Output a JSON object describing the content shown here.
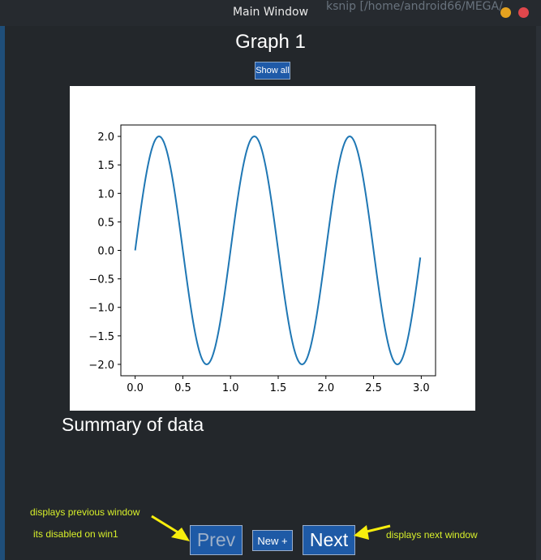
{
  "window": {
    "title": "Main Window",
    "background_title": "ksnip [/home/android66/MEGA/"
  },
  "main": {
    "graph_title": "Graph 1",
    "show_all_label": "Show all",
    "summary_label": "Summary of data",
    "prev_label": "Prev",
    "new_label": "New +",
    "next_label": "Next"
  },
  "annotations": {
    "prev_note_line1": "displays previous window",
    "prev_note_line2": "its disabled on win1",
    "next_note": "displays next window",
    "color": "#d7ef2a"
  },
  "colors": {
    "accent": "#1e5aa6",
    "line": "#1f77b4",
    "close": "#e0474c",
    "minimize": "#e5a21f"
  },
  "chart_data": {
    "type": "line",
    "series": [
      {
        "function": "2*sin(2*pi*x)",
        "x_start": 0.0,
        "x_end": 2.99,
        "x_step": 0.01
      }
    ],
    "xlim": [
      -0.15,
      3.15
    ],
    "ylim": [
      -2.2,
      2.2
    ],
    "xticks": [
      0.0,
      0.5,
      1.0,
      1.5,
      2.0,
      2.5,
      3.0
    ],
    "xtick_labels": [
      "0.0",
      "0.5",
      "1.0",
      "1.5",
      "2.0",
      "2.5",
      "3.0"
    ],
    "yticks": [
      2.0,
      1.5,
      1.0,
      0.5,
      0.0,
      -0.5,
      -1.0,
      -1.5,
      -2.0
    ],
    "ytick_labels": [
      "2.0",
      "1.5",
      "1.0",
      "0.5",
      "0.0",
      "−0.5",
      "−1.0",
      "−1.5",
      "−2.0"
    ],
    "title": "",
    "xlabel": "",
    "ylabel": "",
    "grid": false
  }
}
